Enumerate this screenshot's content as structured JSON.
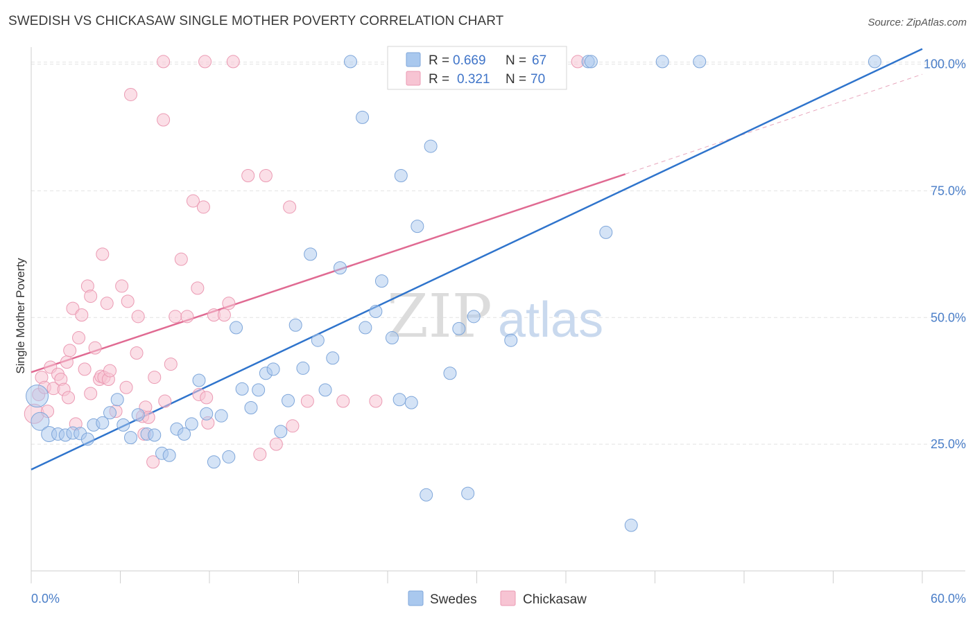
{
  "title": "SWEDISH VS CHICKASAW SINGLE MOTHER POVERTY CORRELATION CHART",
  "source": "Source: ZipAtlas.com",
  "watermark": {
    "zip": "ZIP",
    "atlas": "atlas"
  },
  "legend": {
    "r_label": "R =",
    "n_label": "N =",
    "entries": [
      {
        "r": "0.669",
        "n": "67"
      },
      {
        "r": "0.321",
        "n": "70"
      }
    ]
  },
  "chart_data": {
    "type": "scatter",
    "title": "SWEDISH VS CHICKASAW SINGLE MOTHER POVERTY CORRELATION CHART",
    "xlabel": "",
    "ylabel": "Single Mother Poverty",
    "xlim": [
      0,
      60
    ],
    "ylim": [
      0,
      105
    ],
    "x_tick_labels": [
      "0.0%",
      "60.0%"
    ],
    "y_ticks": [
      25,
      50,
      75,
      100
    ],
    "y_tick_labels": [
      "25.0%",
      "50.0%",
      "75.0%",
      "100.0%"
    ],
    "grid": true,
    "legend_position": "top-center",
    "colors": {
      "swedes": "#a9c8ee",
      "swedes_edge": "#7ea6da",
      "swedes_line": "#2f74cc",
      "chickasaw": "#f7c4d3",
      "chickasaw_edge": "#eb9ab3",
      "chickasaw_line": "#e06a92",
      "tick_text": "#4a7ec8"
    },
    "series": [
      {
        "name": "Swedes",
        "r": 0.669,
        "n": 67,
        "trend": {
          "x1": 0,
          "y1": 20.0,
          "x2": 60,
          "y2": 103.0
        },
        "points": [
          [
            0.4,
            34.5,
            16
          ],
          [
            0.6,
            29.5,
            13
          ],
          [
            1.2,
            27.0,
            11
          ],
          [
            1.8,
            27.0,
            9
          ],
          [
            2.3,
            26.8,
            9
          ],
          [
            2.8,
            27.2,
            9
          ],
          [
            3.3,
            27.1,
            9
          ],
          [
            3.8,
            26.0,
            9
          ],
          [
            4.2,
            28.8,
            9
          ],
          [
            4.8,
            29.2,
            9
          ],
          [
            5.3,
            31.2,
            9
          ],
          [
            5.8,
            33.8,
            9
          ],
          [
            6.2,
            28.8,
            9
          ],
          [
            6.7,
            26.3,
            9
          ],
          [
            7.2,
            30.8,
            9
          ],
          [
            7.8,
            27.0,
            9
          ],
          [
            8.3,
            26.8,
            9
          ],
          [
            8.8,
            23.2,
            9
          ],
          [
            9.3,
            22.8,
            9
          ],
          [
            9.8,
            28.0,
            9
          ],
          [
            10.3,
            27.0,
            9
          ],
          [
            10.8,
            29.0,
            9
          ],
          [
            11.3,
            37.6,
            9
          ],
          [
            11.8,
            31.0,
            9
          ],
          [
            12.3,
            21.5,
            9
          ],
          [
            12.8,
            30.6,
            9
          ],
          [
            13.3,
            22.5,
            9
          ],
          [
            13.8,
            48.0,
            9
          ],
          [
            14.2,
            35.9,
            9
          ],
          [
            14.8,
            32.2,
            9
          ],
          [
            15.3,
            35.7,
            9
          ],
          [
            15.8,
            39.0,
            9
          ],
          [
            16.3,
            39.8,
            9
          ],
          [
            16.8,
            27.5,
            9
          ],
          [
            17.3,
            33.6,
            9
          ],
          [
            17.8,
            48.5,
            9
          ],
          [
            18.3,
            40.0,
            9
          ],
          [
            18.8,
            62.5,
            9
          ],
          [
            19.3,
            45.5,
            9
          ],
          [
            19.8,
            35.7,
            9
          ],
          [
            20.3,
            42.0,
            9
          ],
          [
            20.8,
            59.8,
            9
          ],
          [
            21.5,
            100.5,
            9
          ],
          [
            22.5,
            48.0,
            9
          ],
          [
            22.3,
            89.5,
            9
          ],
          [
            23.2,
            51.2,
            9
          ],
          [
            23.6,
            57.2,
            9
          ],
          [
            24.3,
            46.0,
            9
          ],
          [
            24.8,
            33.8,
            9
          ],
          [
            24.9,
            78.0,
            9
          ],
          [
            25.6,
            33.2,
            9
          ],
          [
            26.0,
            68.0,
            9
          ],
          [
            26.6,
            15.0,
            9
          ],
          [
            26.9,
            83.8,
            9
          ],
          [
            28.2,
            39.0,
            9
          ],
          [
            28.8,
            47.8,
            9
          ],
          [
            29.4,
            15.3,
            9
          ],
          [
            29.8,
            50.2,
            9
          ],
          [
            31.2,
            100.5,
            9
          ],
          [
            32.3,
            45.5,
            9
          ],
          [
            37.5,
            100.5,
            9
          ],
          [
            37.7,
            100.5,
            9
          ],
          [
            38.7,
            66.8,
            9
          ],
          [
            40.4,
            9.0,
            9
          ],
          [
            42.5,
            100.5,
            9
          ],
          [
            45.0,
            100.5,
            9
          ],
          [
            56.8,
            100.5,
            9
          ]
        ]
      },
      {
        "name": "Chickasaw",
        "r": 0.321,
        "n": 70,
        "trend": {
          "x1": 0,
          "y1": 39.2,
          "x2": 40,
          "y2": 78.3,
          "dash_x2": 60,
          "dash_y2": 98.0
        },
        "points": [
          [
            0.2,
            31.0,
            14
          ],
          [
            0.5,
            34.8,
            9
          ],
          [
            0.7,
            38.2,
            9
          ],
          [
            0.9,
            36.2,
            9
          ],
          [
            1.1,
            31.5,
            9
          ],
          [
            1.3,
            40.2,
            9
          ],
          [
            1.5,
            36.0,
            9
          ],
          [
            1.8,
            38.8,
            9
          ],
          [
            2.0,
            37.8,
            9
          ],
          [
            2.2,
            35.8,
            9
          ],
          [
            2.4,
            41.2,
            9
          ],
          [
            2.5,
            34.2,
            9
          ],
          [
            2.6,
            43.5,
            9
          ],
          [
            2.8,
            51.8,
            9
          ],
          [
            3.0,
            29.0,
            9
          ],
          [
            3.2,
            46.0,
            9
          ],
          [
            3.4,
            50.5,
            9
          ],
          [
            3.6,
            39.8,
            9
          ],
          [
            3.8,
            56.2,
            9
          ],
          [
            4.0,
            35.0,
            9
          ],
          [
            4.0,
            54.2,
            9
          ],
          [
            4.3,
            44.0,
            9
          ],
          [
            4.6,
            37.8,
            9
          ],
          [
            4.7,
            38.4,
            9
          ],
          [
            4.8,
            62.5,
            9
          ],
          [
            4.9,
            38.2,
            9
          ],
          [
            5.1,
            52.8,
            9
          ],
          [
            5.2,
            37.8,
            9
          ],
          [
            5.3,
            39.5,
            9
          ],
          [
            5.7,
            31.5,
            9
          ],
          [
            6.1,
            56.2,
            9
          ],
          [
            6.4,
            36.2,
            9
          ],
          [
            6.5,
            53.2,
            9
          ],
          [
            6.7,
            94.0,
            9
          ],
          [
            7.1,
            43.0,
            9
          ],
          [
            7.2,
            50.2,
            9
          ],
          [
            7.5,
            30.5,
            9
          ],
          [
            7.6,
            27.0,
            9
          ],
          [
            7.7,
            32.3,
            9
          ],
          [
            7.9,
            30.3,
            9
          ],
          [
            8.2,
            21.5,
            9
          ],
          [
            8.3,
            38.2,
            9
          ],
          [
            8.9,
            100.5,
            9
          ],
          [
            8.9,
            89.0,
            9
          ],
          [
            9.0,
            33.5,
            9
          ],
          [
            9.4,
            40.8,
            9
          ],
          [
            9.7,
            50.2,
            9
          ],
          [
            10.1,
            61.5,
            9
          ],
          [
            10.5,
            50.2,
            9
          ],
          [
            10.9,
            73.0,
            9
          ],
          [
            11.2,
            55.8,
            9
          ],
          [
            11.3,
            34.8,
            9
          ],
          [
            11.6,
            71.8,
            9
          ],
          [
            11.7,
            100.5,
            9
          ],
          [
            11.8,
            34.2,
            9
          ],
          [
            11.9,
            29.2,
            9
          ],
          [
            12.3,
            50.5,
            9
          ],
          [
            13.0,
            50.5,
            9
          ],
          [
            13.3,
            52.8,
            9
          ],
          [
            13.6,
            100.5,
            9
          ],
          [
            14.6,
            78.0,
            9
          ],
          [
            15.4,
            23.0,
            9
          ],
          [
            15.8,
            78.0,
            9
          ],
          [
            16.5,
            25.0,
            9
          ],
          [
            17.4,
            71.8,
            9
          ],
          [
            17.6,
            28.6,
            9
          ],
          [
            18.6,
            33.5,
            9
          ],
          [
            21.0,
            33.5,
            9
          ],
          [
            23.2,
            33.5,
            9
          ],
          [
            36.8,
            100.5,
            9
          ]
        ]
      }
    ]
  }
}
